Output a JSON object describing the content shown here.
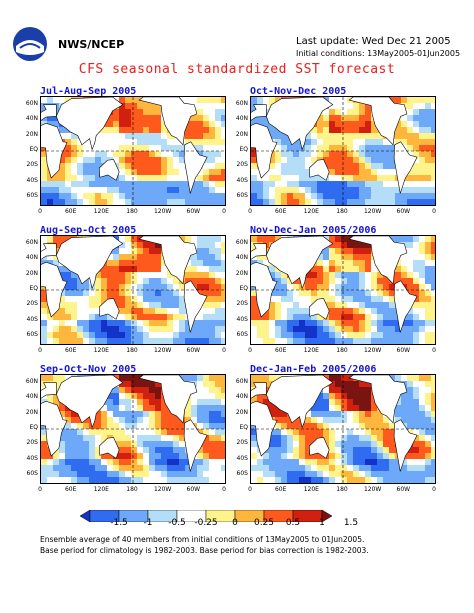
{
  "header": {
    "org": "NWS/NCEP",
    "last_update": "Last update: Wed Dec 21 2005",
    "initial_conditions": "Initial conditions: 13May2005-01Jun2005",
    "title": "CFS seasonal standardized SST forecast"
  },
  "panels": [
    {
      "title": "Jul-Aug-Sep 2005"
    },
    {
      "title": "Oct-Nov-Dec 2005"
    },
    {
      "title": "Aug-Sep-Oct 2005"
    },
    {
      "title": "Nov-Dec-Jan 2005/2006"
    },
    {
      "title": "Sep-Oct-Nov 2005"
    },
    {
      "title": "Dec-Jan-Feb 2005/2006"
    }
  ],
  "lat_labels": [
    "60N",
    "40N",
    "20N",
    "EQ",
    "20S",
    "40S",
    "60S"
  ],
  "lon_labels": [
    "0",
    "60E",
    "120E",
    "180",
    "120W",
    "60W",
    "0"
  ],
  "colorbar": {
    "labels": [
      "-1.5",
      "-1",
      "-0.5",
      "-0.25",
      "0",
      "0.25",
      "0.5",
      "1",
      "1.5"
    ],
    "colors": [
      "#1432c8",
      "#2f6cf0",
      "#6ea8f8",
      "#b4def8",
      "#ffffff",
      "#fff48c",
      "#ffb63c",
      "#ff5a1e",
      "#d02010",
      "#7a1410"
    ]
  },
  "footnotes": [
    "Ensemble average of 40 members from initial conditions of 13May2005 to 01Jun2005.",
    "Base period for climatology is 1982-2003. Base period for bias correction is 1982-2003."
  ]
}
